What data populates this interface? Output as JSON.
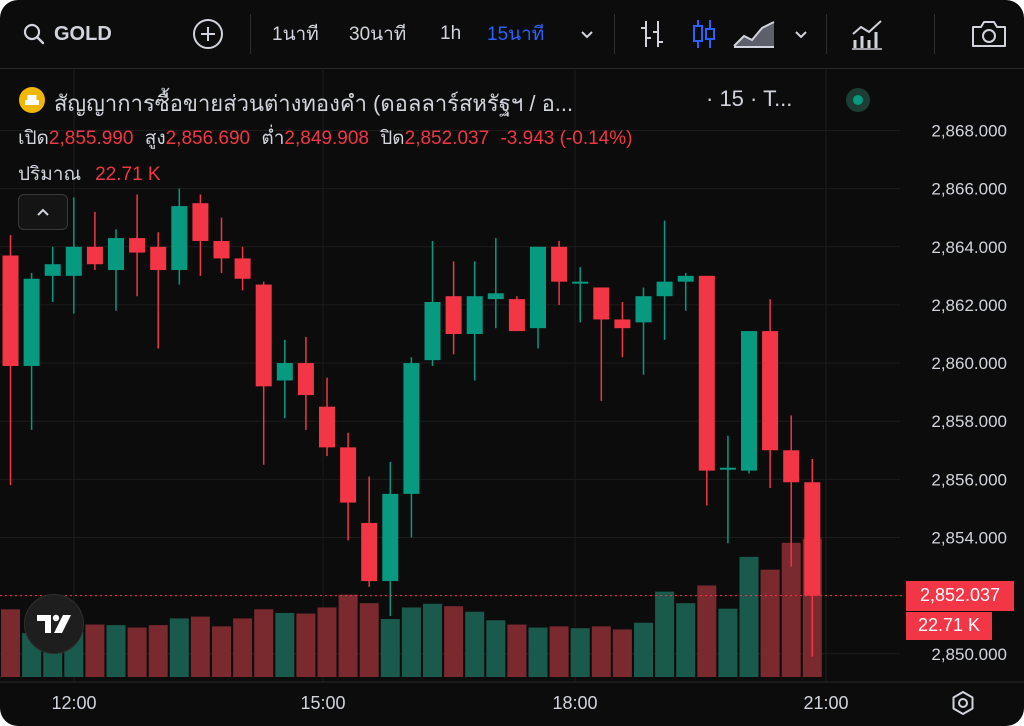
{
  "toolbar": {
    "symbol": "GOLD",
    "intervals": [
      "1นาที",
      "30นาที",
      "1h",
      "15นาที"
    ],
    "active_interval": "15นาที"
  },
  "legend": {
    "title": "สัญญาการซื้อขายส่วนต่างทองคำ (ดอลลาร์สหรัฐฯ / อ...",
    "timeframe": "· 15 · T...",
    "open_label": "เปิด",
    "open": "2,855.990",
    "high_label": "สูง",
    "high": "2,856.690",
    "low_label": "ต่ำ",
    "low": "2,849.908",
    "close_label": "ปิด",
    "close": "2,852.037",
    "change": "-3.943 (-0.14%)",
    "volume_label": "ปริมาณ",
    "volume": "22.71 K"
  },
  "badges": {
    "last_price": "2,852.037",
    "last_volume": "22.71 K"
  },
  "colors": {
    "up": "#089981",
    "down": "#f23645",
    "accent": "#2962ff",
    "background": "#0c0c0c"
  },
  "chart_data": {
    "type": "candlestick",
    "interval": "15 min",
    "price_axis": [
      "2,868.000",
      "2,866.000",
      "2,864.000",
      "2,862.000",
      "2,860.000",
      "2,858.000",
      "2,856.000",
      "2,854.000",
      "2,850.000"
    ],
    "time_axis": [
      "12:00",
      "15:00",
      "18:00",
      "21:00"
    ],
    "ylim": [
      2848.5,
      2869.5
    ],
    "candles": [
      {
        "o": 2863.7,
        "h": 2864.4,
        "l": 2855.8,
        "c": 2859.9
      },
      {
        "o": 2859.9,
        "h": 2863.1,
        "l": 2857.7,
        "c": 2862.9
      },
      {
        "o": 2863.0,
        "h": 2864.0,
        "l": 2862.1,
        "c": 2863.4
      },
      {
        "o": 2863.0,
        "h": 2865.7,
        "l": 2861.7,
        "c": 2864.0
      },
      {
        "o": 2864.0,
        "h": 2865.2,
        "l": 2863.2,
        "c": 2863.4
      },
      {
        "o": 2863.2,
        "h": 2864.6,
        "l": 2861.8,
        "c": 2864.3
      },
      {
        "o": 2864.3,
        "h": 2865.8,
        "l": 2862.3,
        "c": 2863.8
      },
      {
        "o": 2864.0,
        "h": 2864.5,
        "l": 2860.5,
        "c": 2863.2
      },
      {
        "o": 2863.2,
        "h": 2866.0,
        "l": 2862.7,
        "c": 2865.4
      },
      {
        "o": 2865.5,
        "h": 2865.8,
        "l": 2863.0,
        "c": 2864.2
      },
      {
        "o": 2864.2,
        "h": 2865.0,
        "l": 2863.1,
        "c": 2863.6
      },
      {
        "o": 2863.6,
        "h": 2864.0,
        "l": 2862.5,
        "c": 2862.9
      },
      {
        "o": 2862.7,
        "h": 2862.8,
        "l": 2856.5,
        "c": 2859.2
      },
      {
        "o": 2859.4,
        "h": 2860.8,
        "l": 2858.1,
        "c": 2860.0
      },
      {
        "o": 2860.0,
        "h": 2860.9,
        "l": 2857.7,
        "c": 2858.9
      },
      {
        "o": 2858.5,
        "h": 2859.5,
        "l": 2856.8,
        "c": 2857.1
      },
      {
        "o": 2857.1,
        "h": 2857.6,
        "l": 2853.9,
        "c": 2855.2
      },
      {
        "o": 2854.5,
        "h": 2856.1,
        "l": 2852.3,
        "c": 2852.5
      },
      {
        "o": 2852.5,
        "h": 2856.6,
        "l": 2851.3,
        "c": 2855.5
      },
      {
        "o": 2855.5,
        "h": 2860.2,
        "l": 2854.0,
        "c": 2860.0
      },
      {
        "o": 2860.1,
        "h": 2864.2,
        "l": 2859.9,
        "c": 2862.1
      },
      {
        "o": 2862.3,
        "h": 2863.5,
        "l": 2860.3,
        "c": 2861.0
      },
      {
        "o": 2861.0,
        "h": 2863.5,
        "l": 2859.4,
        "c": 2862.3
      },
      {
        "o": 2862.2,
        "h": 2864.3,
        "l": 2861.2,
        "c": 2862.4
      },
      {
        "o": 2862.2,
        "h": 2862.3,
        "l": 2861.2,
        "c": 2861.1
      },
      {
        "o": 2861.2,
        "h": 2864.0,
        "l": 2860.5,
        "c": 2864.0
      },
      {
        "o": 2864.0,
        "h": 2864.2,
        "l": 2862.0,
        "c": 2862.8
      },
      {
        "o": 2862.8,
        "h": 2863.3,
        "l": 2861.4,
        "c": 2862.8
      },
      {
        "o": 2862.6,
        "h": 2862.6,
        "l": 2858.7,
        "c": 2861.5
      },
      {
        "o": 2861.5,
        "h": 2862.1,
        "l": 2860.2,
        "c": 2861.2
      },
      {
        "o": 2861.4,
        "h": 2862.6,
        "l": 2859.6,
        "c": 2862.3
      },
      {
        "o": 2862.3,
        "h": 2864.9,
        "l": 2860.8,
        "c": 2862.8
      },
      {
        "o": 2862.8,
        "h": 2863.1,
        "l": 2861.8,
        "c": 2863.0
      },
      {
        "o": 2863.0,
        "h": 2863.0,
        "l": 2855.1,
        "c": 2856.3
      },
      {
        "o": 2856.4,
        "h": 2857.5,
        "l": 2853.8,
        "c": 2856.4
      },
      {
        "o": 2856.3,
        "h": 2861.1,
        "l": 2856.2,
        "c": 2861.1
      },
      {
        "o": 2861.1,
        "h": 2862.2,
        "l": 2855.7,
        "c": 2857.0
      },
      {
        "o": 2857.0,
        "h": 2858.2,
        "l": 2853.0,
        "c": 2855.9
      },
      {
        "o": 2855.9,
        "h": 2856.7,
        "l": 2849.9,
        "c": 2852.0
      }
    ],
    "volumes": [
      11.1,
      7.2,
      7.3,
      7.4,
      8.6,
      8.5,
      8.1,
      8.5,
      9.6,
      9.9,
      8.3,
      9.6,
      11.1,
      10.5,
      10.4,
      11.4,
      13.5,
      12.1,
      9.5,
      11.4,
      12.0,
      11.6,
      10.7,
      9.3,
      8.6,
      8.1,
      8.3,
      8.0,
      8.3,
      7.8,
      8.9,
      14.0,
      12.1,
      15.0,
      11.2,
      19.7,
      17.6,
      22.0,
      22.7
    ]
  }
}
